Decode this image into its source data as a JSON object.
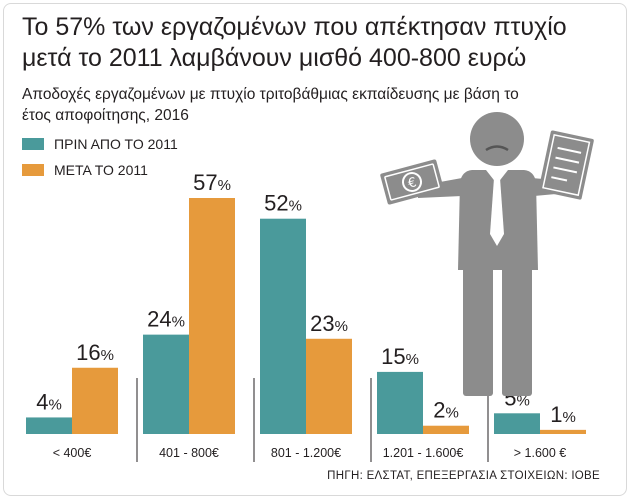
{
  "chart_data": {
    "type": "bar",
    "title": "Το 57% των εργαζομένων που απέκτησαν πτυχίο μετά το 2011 λαμβάνουν μισθό 400-800 ευρώ",
    "subtitle": "Αποδοχές εργαζομένων με πτυχίο τριτοβάθμιας εκπαίδευσης με βάση το έτος αποφοίτησης, 2016",
    "categories": [
      "< 400€",
      "401 - 800€",
      "801 - 1.200€",
      "1.201 - 1.600€",
      "> 1.600 €"
    ],
    "series": [
      {
        "name": "ΠΡΙΝ ΑΠΟ ΤΟ 2011",
        "values": [
          4,
          24,
          52,
          15,
          5
        ],
        "labels": [
          "4%",
          "24%",
          "52%",
          "15%",
          "5%"
        ],
        "color": "#4a9a9b"
      },
      {
        "name": "ΜΕΤΑ ΤΟ 2011",
        "values": [
          16,
          57,
          23,
          2,
          1
        ],
        "labels": [
          "16%",
          "57%",
          "23%",
          "2%",
          "1%"
        ],
        "color": "#e69a3c"
      }
    ],
    "ylim": [
      0,
      57
    ],
    "legend": "top-left",
    "grid": false,
    "source": "ΠΗΓΗ: ΕΛΣΤΑΤ, ΕΠΕΞΕΡΓΑΣΙΑ ΣΤΟΙΧΕΙΩΝ: ΙΟΒΕ"
  },
  "illustration": {
    "icon": "graduate-worker-icon",
    "color": "#8c8c8c"
  }
}
